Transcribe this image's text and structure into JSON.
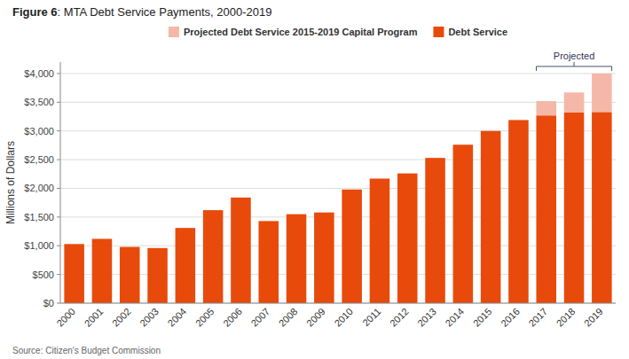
{
  "chart_data": {
    "type": "bar",
    "stacked": true,
    "title": "Figure 6: MTA Debt Service Payments, 2000-2019",
    "ylabel": "Millions of Dollars",
    "source": "Source: Citizen's Budget Commission",
    "categories": [
      "2000",
      "2001",
      "2002",
      "2003",
      "2004",
      "2005",
      "2006",
      "2007",
      "2008",
      "2009",
      "2010",
      "2011",
      "2012",
      "2013",
      "2014",
      "2015",
      "2016",
      "2017",
      "2018",
      "2019"
    ],
    "series": [
      {
        "name": "Debt Service",
        "color": "#E84A0C",
        "values": [
          1030,
          1120,
          980,
          960,
          1310,
          1620,
          1840,
          1430,
          1550,
          1580,
          1980,
          2170,
          2260,
          2530,
          2760,
          3000,
          3190,
          3270,
          3320,
          3330
        ]
      },
      {
        "name": "Projected Debt Service 2015-2019 Capital Program",
        "color": "#F5B8A8",
        "values": [
          0,
          0,
          0,
          0,
          0,
          0,
          0,
          0,
          0,
          0,
          0,
          0,
          0,
          0,
          0,
          0,
          0,
          250,
          350,
          670
        ]
      }
    ],
    "ylim": [
      0,
      4200
    ],
    "yticks": [
      {
        "value": 0,
        "label": "$0"
      },
      {
        "value": 500,
        "label": "$500"
      },
      {
        "value": 1000,
        "label": "$1,000"
      },
      {
        "value": 1500,
        "label": "$1,500"
      },
      {
        "value": 2000,
        "label": "$2,000"
      },
      {
        "value": 2500,
        "label": "$2,500"
      },
      {
        "value": 3000,
        "label": "$3,000"
      },
      {
        "value": 3500,
        "label": "$3,500"
      },
      {
        "value": 4000,
        "label": "$4,000"
      }
    ],
    "grid": true,
    "legend": "top",
    "annotations": [
      {
        "text": "Projected",
        "from": "2017",
        "to": "2019"
      }
    ]
  }
}
